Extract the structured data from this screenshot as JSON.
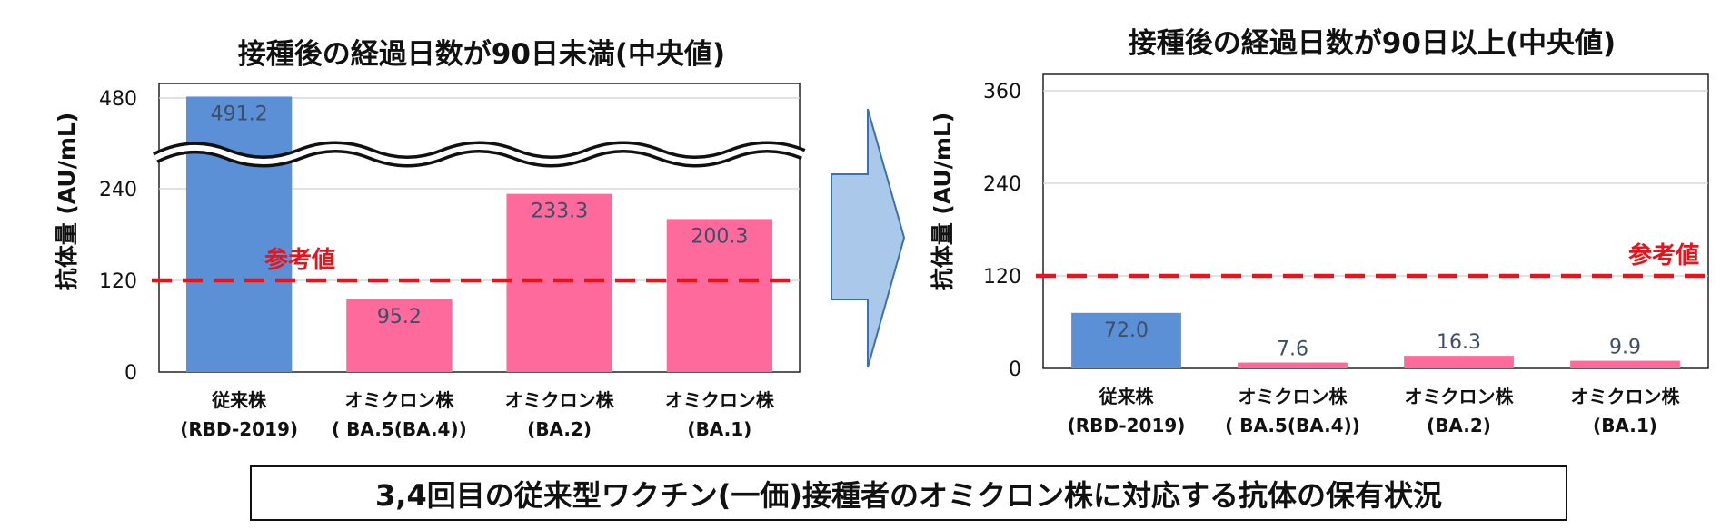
{
  "footer_caption": "3,4回目の従来型ワクチン(一価)接種者のオミクロン株に対応する抗体の保有状況",
  "colors": {
    "conventional": "#5b8fd6",
    "omicron": "#ff6a9c",
    "reference": "#e8141c",
    "arrow_fill": "#a9c8ea",
    "arrow_stroke": "#3d6fb5"
  },
  "icons": {
    "arrow": "right-block-arrow-icon",
    "break": "axis-break-wave-icon"
  },
  "chart_data": [
    {
      "type": "bar",
      "title": "接種後の経過日数が90日未満(中央値)",
      "ylabel": "抗体量 (AU/mL)",
      "ylim": [
        0,
        480
      ],
      "yticks": [
        "0",
        "120",
        "240",
        "480"
      ],
      "axis_break": true,
      "grid": true,
      "categories": [
        [
          "従来株",
          "(RBD-2019)"
        ],
        [
          "オミクロン株",
          "( BA.5(BA.4))"
        ],
        [
          "オミクロン株",
          "(BA.2)"
        ],
        [
          "オミクロン株",
          "(BA.1)"
        ]
      ],
      "values": [
        491.2,
        95.2,
        233.3,
        200.3
      ],
      "value_labels": [
        "491.2",
        "95.2",
        "233.3",
        "200.3"
      ],
      "reference_line": {
        "value": 120,
        "label": "参考値"
      }
    },
    {
      "type": "bar",
      "title": "接種後の経過日数が90日以上(中央値)",
      "ylabel": "抗体量 (AU/mL)",
      "ylim": [
        0,
        360
      ],
      "yticks": [
        "0",
        "120",
        "240",
        "360"
      ],
      "axis_break": false,
      "grid": true,
      "categories": [
        [
          "従来株",
          "(RBD-2019)"
        ],
        [
          "オミクロン株",
          "( BA.5(BA.4))"
        ],
        [
          "オミクロン株",
          "(BA.2)"
        ],
        [
          "オミクロン株",
          "(BA.1)"
        ]
      ],
      "values": [
        72.0,
        7.6,
        16.3,
        9.9
      ],
      "value_labels": [
        "72.0",
        "7.6",
        "16.3",
        "9.9"
      ],
      "reference_line": {
        "value": 120,
        "label": "参考値"
      }
    }
  ]
}
